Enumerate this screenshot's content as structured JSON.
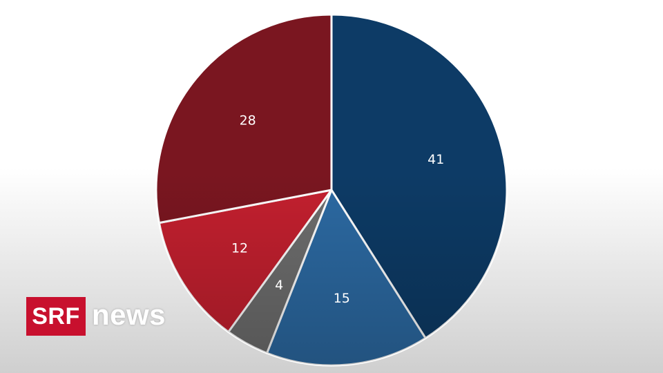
{
  "chart_data": {
    "type": "pie",
    "categories": [
      "",
      "",
      "",
      "",
      ""
    ],
    "values": [
      41,
      15,
      4,
      12,
      28
    ],
    "data_labels": [
      "41",
      "15",
      "4",
      "12",
      "28"
    ],
    "colors": [
      "#0d3b66",
      "#2c6aa3",
      "#6e6e6e",
      "#c4202f",
      "#7a1620"
    ],
    "start_angle_deg": 0,
    "direction": "clockwise"
  },
  "logo": {
    "brand": "SRF",
    "product": "news",
    "brand_color": "#c8102e"
  }
}
